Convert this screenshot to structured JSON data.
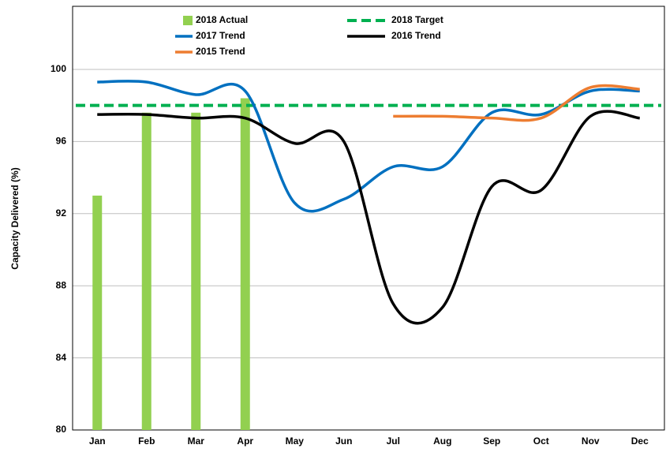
{
  "chart_data": {
    "type": "combo",
    "y_label": "Capacity Delivered (%)",
    "categories": [
      "Jan",
      "Feb",
      "Mar",
      "Apr",
      "May",
      "Jun",
      "Jul",
      "Aug",
      "Sep",
      "Oct",
      "Nov",
      "Dec"
    ],
    "ylim": [
      80,
      103.5
    ],
    "yticks": [
      80,
      84,
      88,
      92,
      96,
      100
    ],
    "grid": true,
    "series": [
      {
        "name": "2018 Actual",
        "type": "bar",
        "color": "#92d050",
        "values": [
          93,
          97.6,
          97.6,
          98.4,
          null,
          null,
          null,
          null,
          null,
          null,
          null,
          null
        ]
      },
      {
        "name": "2018 Target",
        "type": "dashed",
        "color": "#00b050",
        "values": [
          98,
          98,
          98,
          98,
          98,
          98,
          98,
          98,
          98,
          98,
          98,
          98
        ]
      },
      {
        "name": "2017 Trend",
        "type": "smooth",
        "color": "#0070c0",
        "values": [
          99.3,
          99.3,
          98.6,
          98.8,
          92.6,
          92.8,
          94.6,
          94.6,
          97.6,
          97.5,
          98.8,
          98.8
        ]
      },
      {
        "name": "2016 Trend",
        "type": "smooth",
        "color": "#000000",
        "values": [
          97.5,
          97.5,
          97.3,
          97.3,
          95.9,
          96.0,
          87.0,
          86.8,
          93.5,
          93.3,
          97.4,
          97.3
        ]
      },
      {
        "name": "2015 Trend",
        "type": "smooth",
        "color": "#ed7d31",
        "values": [
          null,
          null,
          null,
          null,
          null,
          null,
          97.4,
          97.4,
          97.3,
          97.3,
          99.0,
          98.9
        ]
      }
    ]
  }
}
